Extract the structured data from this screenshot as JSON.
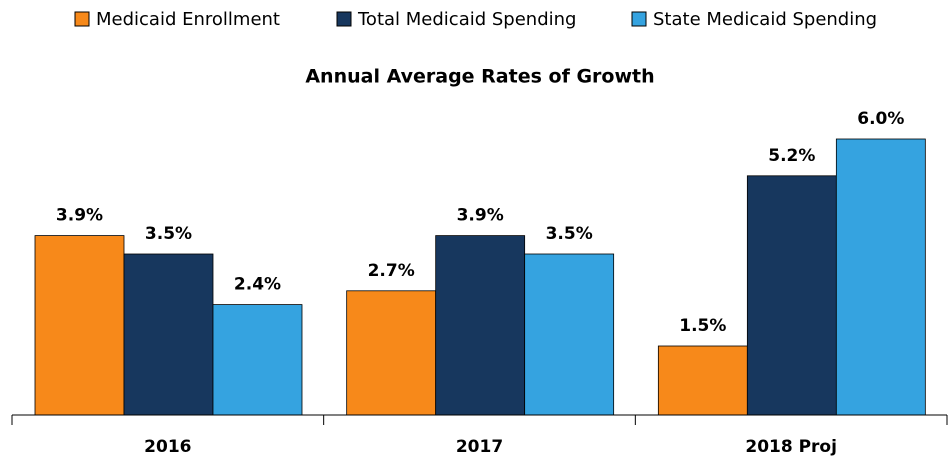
{
  "chart_data": {
    "type": "bar",
    "title": "Annual Average Rates of Growth",
    "categories": [
      "2016",
      "2017",
      "2018 Proj"
    ],
    "series": [
      {
        "name": "Medicaid Enrollment",
        "color": "#f7891a",
        "values": [
          3.9,
          2.7,
          1.5
        ],
        "value_labels": [
          "3.9%",
          "2.7%",
          "1.5%"
        ]
      },
      {
        "name": "Total Medicaid Spending",
        "color": "#17375e",
        "values": [
          3.5,
          3.9,
          5.2
        ],
        "value_labels": [
          "3.5%",
          "3.9%",
          "5.2%"
        ]
      },
      {
        "name": "State Medicaid Spending",
        "color": "#35a3e0",
        "values": [
          2.4,
          3.5,
          6.0
        ],
        "value_labels": [
          "2.4%",
          "3.5%",
          "6.0%"
        ]
      }
    ],
    "legend": "top"
  }
}
